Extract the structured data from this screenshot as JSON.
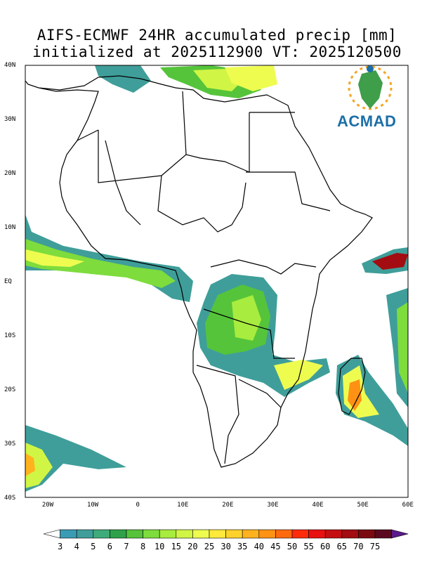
{
  "title": {
    "line1": "AIFS-ECMWF 24HR accumulated precip [mm]",
    "line2": "initialized at 2025112900 VT: 2025120500"
  },
  "axes": {
    "lat_labels": [
      "40N",
      "30N",
      "20N",
      "10N",
      "EQ",
      "10S",
      "20S",
      "30S",
      "40S"
    ],
    "lon_labels": [
      "20W",
      "10W",
      "0",
      "10E",
      "20E",
      "30E",
      "40E",
      "50E",
      "60E"
    ]
  },
  "colorbar": {
    "labels": [
      "3",
      "4",
      "5",
      "6",
      "7",
      "8",
      "10",
      "15",
      "20",
      "25",
      "30",
      "35",
      "40",
      "45",
      "50",
      "55",
      "60",
      "65",
      "70",
      "75"
    ],
    "colors": [
      "#ffffff",
      "#3a9bb5",
      "#3f9e9a",
      "#3eab7a",
      "#2fa14a",
      "#55c43a",
      "#7edc3c",
      "#a8ec3f",
      "#d0f545",
      "#eefc50",
      "#ffea3c",
      "#ffd12b",
      "#ffb21e",
      "#ff9214",
      "#ff6a0f",
      "#ff2a0a",
      "#e81010",
      "#c40e12",
      "#a30c10",
      "#7a0a10",
      "#5a0820",
      "#5a1a8a"
    ]
  },
  "logo": {
    "text": "ACMAD"
  }
}
